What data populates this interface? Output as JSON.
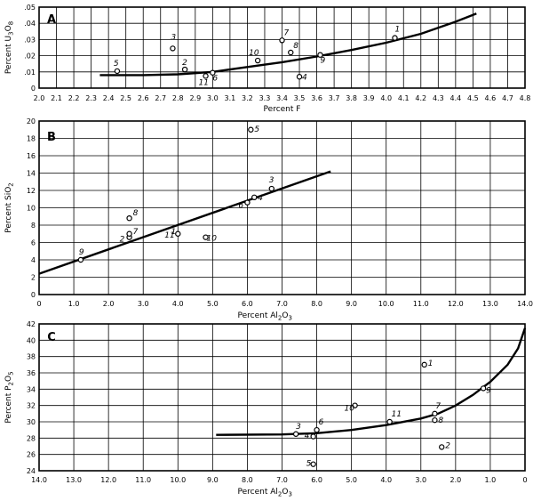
{
  "chart_data": [
    {
      "panel": "A",
      "type": "scatter",
      "xlabel": "Percent F",
      "ylabel": "Percent U3O8",
      "ylabel_parts": [
        "Percent U",
        "3",
        "O",
        "8"
      ],
      "xlim": [
        2.0,
        4.8
      ],
      "ylim": [
        0,
        0.05
      ],
      "xticks": [
        "2.0",
        "2.1",
        "2.2",
        "2.3",
        "2.4",
        "2.5",
        "2.6",
        "2.7",
        "2.8",
        "2.9",
        "3.0",
        "3.1",
        "3.2",
        "3.3",
        "3.4",
        "3.5",
        "3.6",
        "3.7",
        "3.8",
        "3.9",
        "4.0",
        "4.1",
        "4.2",
        "4.3",
        "4.4",
        "4.5",
        "4.6",
        "4.7",
        "4.8"
      ],
      "yticks": [
        ".05",
        ".04",
        ".03",
        ".02",
        ".01",
        "0"
      ],
      "points": [
        {
          "label": "1",
          "x": 4.05,
          "y": 0.031
        },
        {
          "label": "2",
          "x": 2.84,
          "y": 0.0115
        },
        {
          "label": "3",
          "x": 2.77,
          "y": 0.0245
        },
        {
          "label": "4",
          "x": 3.5,
          "y": 0.007
        },
        {
          "label": "5",
          "x": 2.45,
          "y": 0.0105
        },
        {
          "label": "6",
          "x": 3.0,
          "y": 0.0095
        },
        {
          "label": "7",
          "x": 3.4,
          "y": 0.0295
        },
        {
          "label": "8",
          "x": 3.45,
          "y": 0.022
        },
        {
          "label": "9",
          "x": 3.62,
          "y": 0.0205
        },
        {
          "label": "10",
          "x": 3.26,
          "y": 0.017
        },
        {
          "label": "11",
          "x": 2.96,
          "y": 0.0075
        }
      ],
      "curve": {
        "x": [
          2.35,
          2.6,
          2.8,
          3.0,
          3.2,
          3.4,
          3.6,
          3.8,
          4.0,
          4.2,
          4.4,
          4.52
        ],
        "y": [
          0.008,
          0.008,
          0.0085,
          0.01,
          0.013,
          0.016,
          0.0195,
          0.0235,
          0.028,
          0.0335,
          0.041,
          0.046
        ]
      }
    },
    {
      "panel": "B",
      "type": "scatter",
      "xlabel": "Percent Al2O3",
      "xlabel_parts": [
        "Percent Al",
        "2",
        "O",
        "3"
      ],
      "ylabel": "Percent SiO2",
      "ylabel_parts": [
        "Percent SiO",
        "2"
      ],
      "xlim": [
        0,
        14.0
      ],
      "ylim": [
        0,
        20
      ],
      "xticks": [
        "0",
        "1.0",
        "2.0",
        "3.0",
        "4.0",
        "5.0",
        "6.0",
        "7.0",
        "8.0",
        "9.0",
        "10.0",
        "11.0",
        "12.0",
        "13.0",
        "14.0"
      ],
      "yticks": [
        "20",
        "18",
        "16",
        "14",
        "12",
        "10",
        "8",
        "6",
        "4",
        "2",
        "0"
      ],
      "points": [
        {
          "label": "1",
          "x": 3.8,
          "y": 7.0
        },
        {
          "label": "2",
          "x": 2.6,
          "y": 6.6
        },
        {
          "label": "3",
          "x": 6.7,
          "y": 12.2
        },
        {
          "label": "4",
          "x": 6.2,
          "y": 11.2
        },
        {
          "label": "5",
          "x": 6.1,
          "y": 19.0
        },
        {
          "label": "6",
          "x": 6.0,
          "y": 10.6
        },
        {
          "label": "7",
          "x": 2.6,
          "y": 7.0
        },
        {
          "label": "8",
          "x": 2.6,
          "y": 8.8
        },
        {
          "label": "9",
          "x": 1.2,
          "y": 4.0
        },
        {
          "label": "10",
          "x": 4.8,
          "y": 6.6
        },
        {
          "label": "11",
          "x": 4.0,
          "y": 7.0
        }
      ],
      "curve": {
        "x": [
          0,
          8.4
        ],
        "y": [
          2.4,
          14.2
        ]
      }
    },
    {
      "panel": "C",
      "type": "scatter",
      "xlabel": "Percent Al2O3",
      "xlabel_parts": [
        "Percent Al",
        "2",
        "O",
        "3"
      ],
      "ylabel": "Percent P2O5",
      "ylabel_parts": [
        "Percent P",
        "2",
        "O",
        "5"
      ],
      "xlim": [
        14.0,
        0
      ],
      "ylim": [
        24,
        42
      ],
      "xticks": [
        "14.0",
        "13.0",
        "12.0",
        "11.0",
        "10.0",
        "9.0",
        "8.0",
        "7.0",
        "6.0",
        "5.0",
        "4.0",
        "3.0",
        "2.0",
        "1.0",
        "0"
      ],
      "yticks": [
        "42",
        "40",
        "38",
        "36",
        "34",
        "32",
        "30",
        "28",
        "26",
        "24"
      ],
      "points": [
        {
          "label": "1",
          "x": 2.9,
          "y": 37.0
        },
        {
          "label": "2",
          "x": 2.4,
          "y": 26.9
        },
        {
          "label": "3",
          "x": 6.6,
          "y": 28.5
        },
        {
          "label": "4",
          "x": 6.1,
          "y": 28.2
        },
        {
          "label": "5",
          "x": 6.1,
          "y": 24.8
        },
        {
          "label": "6",
          "x": 6.0,
          "y": 29.0
        },
        {
          "label": "7",
          "x": 2.6,
          "y": 31.0
        },
        {
          "label": "8",
          "x": 2.6,
          "y": 30.2
        },
        {
          "label": "9",
          "x": 1.2,
          "y": 34.1
        },
        {
          "label": "10",
          "x": 4.9,
          "y": 32.0
        },
        {
          "label": "11",
          "x": 3.9,
          "y": 30.0
        }
      ],
      "curve": {
        "x": [
          8.9,
          7.0,
          6.0,
          5.0,
          4.0,
          3.0,
          2.5,
          2.0,
          1.5,
          1.0,
          0.5,
          0.2,
          0
        ],
        "y": [
          28.4,
          28.45,
          28.6,
          29.0,
          29.6,
          30.4,
          31.0,
          32.0,
          33.3,
          34.9,
          37.0,
          39.0,
          41.5
        ]
      }
    }
  ]
}
